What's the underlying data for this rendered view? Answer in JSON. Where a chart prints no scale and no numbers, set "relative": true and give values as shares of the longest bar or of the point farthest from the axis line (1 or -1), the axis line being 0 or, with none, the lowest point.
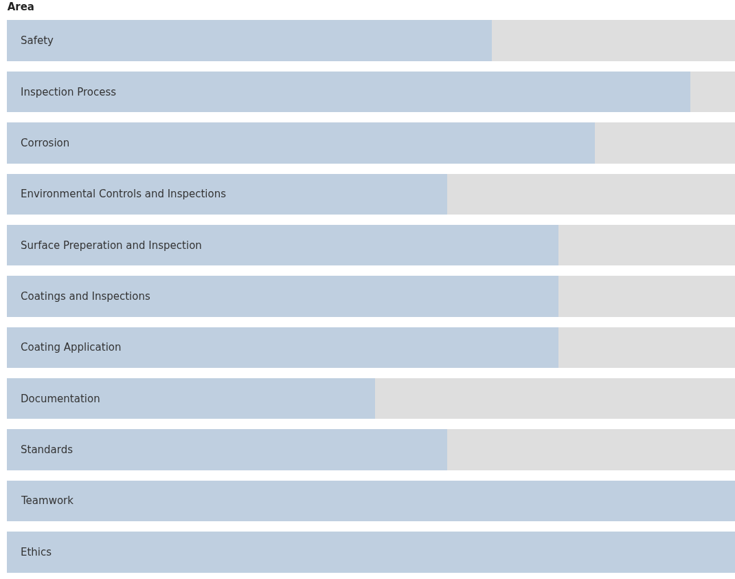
{
  "chart_data": {
    "type": "bar",
    "title": "Area",
    "orientation": "horizontal",
    "stacked": true,
    "relative": true,
    "categories": [
      "Safety",
      "Inspection Process",
      "Corrosion",
      "Environmental Controls and Inspections",
      "Surface Preperation and Inspection",
      "Coatings and Inspections",
      "Coating Application",
      "Documentation",
      "Standards",
      "Teamwork",
      "Ethics"
    ],
    "series": [
      {
        "color": "#bfcfe0",
        "values": [
          0.666,
          0.939,
          0.808,
          0.605,
          0.758,
          0.758,
          0.758,
          0.506,
          0.605,
          1,
          1
        ]
      },
      {
        "color": "#dedede",
        "values": [
          0.334,
          0.061,
          0.192,
          0.395,
          0.242,
          0.242,
          0.242,
          0.494,
          0.395,
          0,
          0
        ]
      }
    ]
  }
}
